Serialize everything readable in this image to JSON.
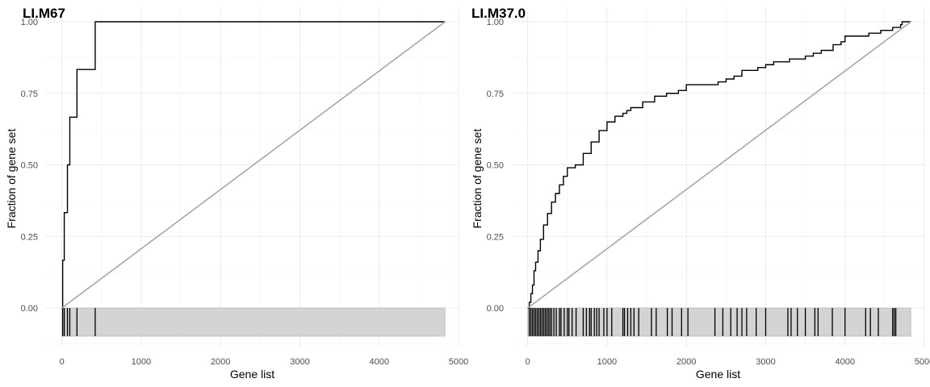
{
  "chart_data": [
    {
      "type": "line",
      "title": "LI.M67",
      "xlabel": "Gene list",
      "ylabel": "Fraction of gene set",
      "xlim": [
        -200,
        5000
      ],
      "ylim": [
        -0.12,
        1.0
      ],
      "grid": true,
      "x_ticks": [
        0,
        1000,
        2000,
        3000,
        4000,
        5000
      ],
      "x_tick_labels": [
        "0",
        "1000",
        "2000",
        "3000",
        "4000",
        "5000"
      ],
      "y_ticks": [
        0,
        0.25,
        0.5,
        0.75,
        1.0
      ],
      "y_tick_labels": [
        "0.00",
        "0.25",
        "0.50",
        "0.75",
        "1.00"
      ],
      "list_size": 4830,
      "series": [
        {
          "role": "enrichment-step",
          "color": "#000000",
          "points": [
            [
              0,
              0
            ],
            [
              10,
              0
            ],
            [
              10,
              0.1667
            ],
            [
              30,
              0.1667
            ],
            [
              30,
              0.3333
            ],
            [
              70,
              0.3333
            ],
            [
              70,
              0.5
            ],
            [
              100,
              0.5
            ],
            [
              100,
              0.6667
            ],
            [
              190,
              0.6667
            ],
            [
              190,
              0.8333
            ],
            [
              420,
              0.8333
            ],
            [
              420,
              1.0
            ],
            [
              4830,
              1.0
            ]
          ]
        },
        {
          "role": "diagonal",
          "color": "#a6a6a6",
          "points": [
            [
              0,
              0
            ],
            [
              4830,
              1.0
            ]
          ]
        }
      ],
      "barcode": {
        "fill": "#d3d3d3",
        "positions": [
          10,
          30,
          70,
          100,
          190,
          420
        ]
      }
    },
    {
      "type": "line",
      "title": "LI.M37.0",
      "xlabel": "Gene list",
      "ylabel": "Fraction of gene set",
      "xlim": [
        -200,
        5000
      ],
      "ylim": [
        -0.12,
        1.0
      ],
      "grid": true,
      "x_ticks": [
        0,
        1000,
        2000,
        3000,
        4000,
        5000
      ],
      "x_tick_labels": [
        "0",
        "1000",
        "2000",
        "3000",
        "4000",
        "5000"
      ],
      "y_ticks": [
        0,
        0.25,
        0.5,
        0.75,
        1.0
      ],
      "y_tick_labels": [
        "0.00",
        "0.25",
        "0.50",
        "0.75",
        "1.00"
      ],
      "list_size": 4830,
      "series": [
        {
          "role": "enrichment-step",
          "color": "#000000",
          "points": [
            [
              0,
              0
            ],
            [
              20,
              0.02
            ],
            [
              40,
              0.05
            ],
            [
              60,
              0.08
            ],
            [
              80,
              0.13
            ],
            [
              100,
              0.16
            ],
            [
              130,
              0.2
            ],
            [
              160,
              0.24
            ],
            [
              200,
              0.29
            ],
            [
              250,
              0.33
            ],
            [
              300,
              0.37
            ],
            [
              350,
              0.4
            ],
            [
              400,
              0.43
            ],
            [
              450,
              0.46
            ],
            [
              500,
              0.49
            ],
            [
              600,
              0.5
            ],
            [
              700,
              0.54
            ],
            [
              800,
              0.58
            ],
            [
              900,
              0.62
            ],
            [
              1000,
              0.65
            ],
            [
              1100,
              0.67
            ],
            [
              1200,
              0.68
            ],
            [
              1250,
              0.69
            ],
            [
              1300,
              0.7
            ],
            [
              1450,
              0.72
            ],
            [
              1600,
              0.74
            ],
            [
              1750,
              0.75
            ],
            [
              1900,
              0.76
            ],
            [
              2000,
              0.78
            ],
            [
              2300,
              0.78
            ],
            [
              2400,
              0.79
            ],
            [
              2500,
              0.8
            ],
            [
              2600,
              0.81
            ],
            [
              2700,
              0.83
            ],
            [
              2900,
              0.84
            ],
            [
              3000,
              0.85
            ],
            [
              3100,
              0.86
            ],
            [
              3300,
              0.87
            ],
            [
              3500,
              0.88
            ],
            [
              3600,
              0.89
            ],
            [
              3700,
              0.9
            ],
            [
              3850,
              0.92
            ],
            [
              3950,
              0.93
            ],
            [
              4000,
              0.95
            ],
            [
              4300,
              0.96
            ],
            [
              4450,
              0.97
            ],
            [
              4600,
              0.98
            ],
            [
              4700,
              0.99
            ],
            [
              4720,
              1.0
            ],
            [
              4830,
              1.0
            ]
          ]
        },
        {
          "role": "diagonal",
          "color": "#a6a6a6",
          "points": [
            [
              0,
              0
            ],
            [
              4830,
              1.0
            ]
          ]
        }
      ],
      "barcode": {
        "fill": "#d3d3d3",
        "positions": [
          20,
          40,
          60,
          80,
          100,
          120,
          140,
          160,
          180,
          200,
          220,
          240,
          260,
          280,
          300,
          330,
          360,
          400,
          420,
          460,
          500,
          520,
          560,
          610,
          700,
          740,
          780,
          800,
          840,
          870,
          900,
          960,
          1000,
          1060,
          1200,
          1220,
          1260,
          1300,
          1340,
          1400,
          1560,
          1620,
          1760,
          1820,
          1940,
          2020,
          2360,
          2460,
          2560,
          2640,
          2700,
          2760,
          2880,
          3000,
          3280,
          3320,
          3400,
          3500,
          3620,
          3660,
          3840,
          4000,
          4260,
          4320,
          4420,
          4600,
          4620,
          4640
        ]
      }
    }
  ]
}
